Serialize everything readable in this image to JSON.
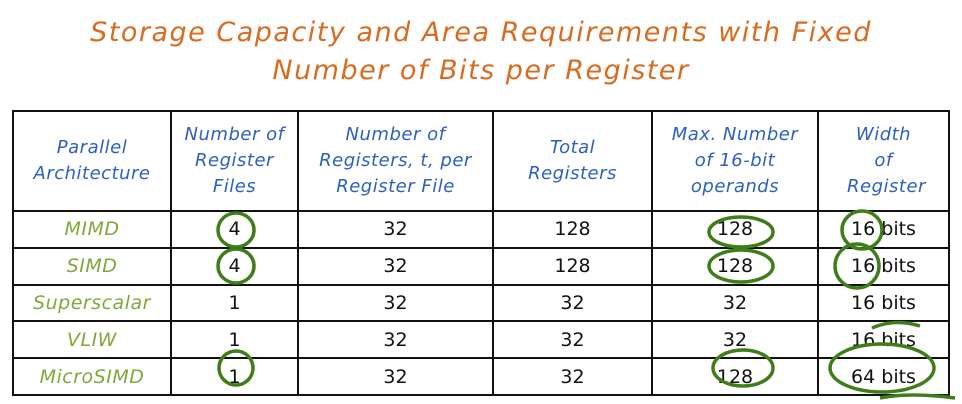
{
  "title": {
    "line1": "Storage Capacity and Area Requirements with Fixed",
    "line2": "Number of Bits per Register"
  },
  "table": {
    "headers": [
      "Parallel Architecture",
      "Number of Register Files",
      "Number of Registers, t, per Register File",
      "Total Registers",
      "Max. Number of 16-bit operands",
      "Width of Register"
    ],
    "rows": [
      [
        "MIMD",
        "4",
        "32",
        "128",
        "128",
        "16 bits"
      ],
      [
        "SIMD",
        "4",
        "32",
        "128",
        "128",
        "16 bits"
      ],
      [
        "Superscalar",
        "1",
        "32",
        "32",
        "32",
        "16 bits"
      ],
      [
        "VLIW",
        "1",
        "32",
        "32",
        "32",
        "16 bits"
      ],
      [
        "MicroSIMD",
        "1",
        "32",
        "32",
        "128",
        "64 bits"
      ]
    ]
  },
  "colors": {
    "title": "#d96a1f",
    "header": "#2b5fc4",
    "architecture": "#7fa83a",
    "annotation": "#3e7d1a"
  }
}
